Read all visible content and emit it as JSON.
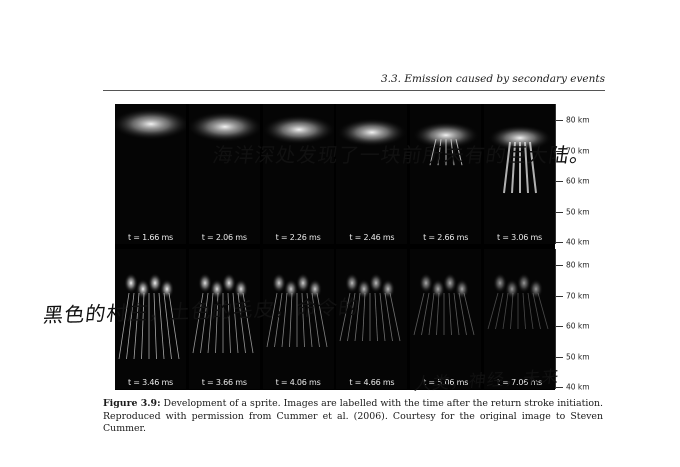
{
  "page": {
    "header": "3.3.  Emission caused by secondary events"
  },
  "figure": {
    "rows": [
      {
        "panels": [
          "t = 1.66 ms",
          "t = 2.06 ms",
          "t = 2.26 ms",
          "t = 2.46 ms",
          "t = 2.66 ms",
          "t = 3.06 ms"
        ]
      },
      {
        "panels": [
          "t = 3.46 ms",
          "t = 3.66 ms",
          "t = 4.06 ms",
          "t = 4.66 ms",
          "t = 5.06 ms",
          "t = 7.06 ms"
        ]
      }
    ],
    "altitude_labels": [
      "80 km",
      "70 km",
      "60 km",
      "50 km",
      "40 km"
    ]
  },
  "caption": {
    "label": "Figure 3.9:",
    "text": "Development of a sprite.  Images are labelled with the time after the return stroke initiation. Reproduced with permission from Cummer et al. (2006). Courtesy for the original image to Steven Cummer."
  },
  "handwriting": {
    "line1": "海洋深处发现了一块前所未有的巨大陆。",
    "line2": "黑色的村庄，土色的毛皮，命令的",
    "line3": "人类，神经，未来"
  }
}
